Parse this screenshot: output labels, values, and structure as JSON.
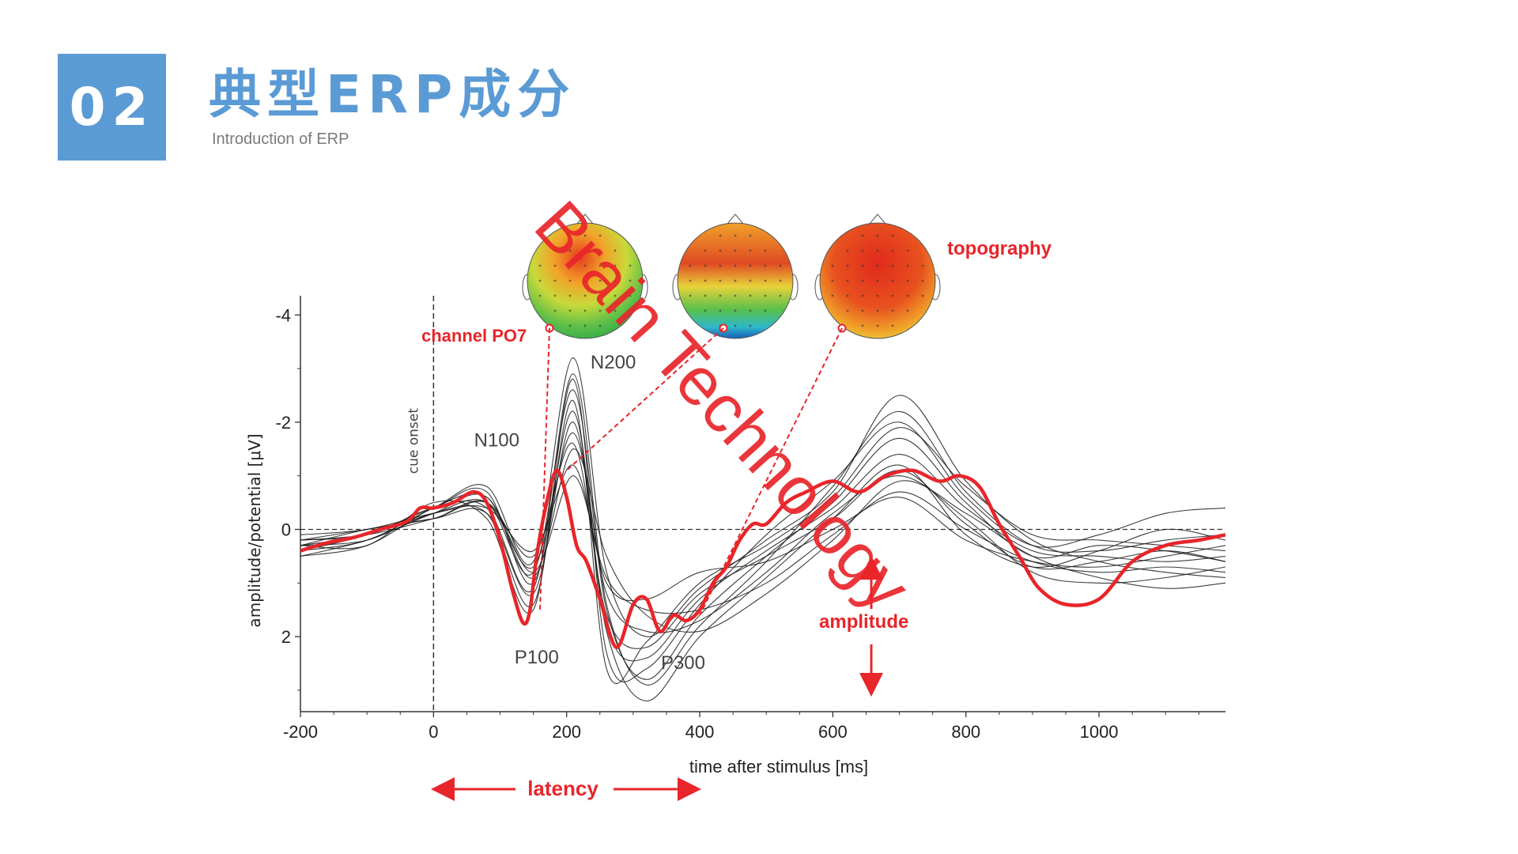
{
  "header": {
    "section_number": "02",
    "title": "典型ERP成分",
    "subtitle": "Introduction of ERP"
  },
  "watermark": "Brain Technology",
  "chart_data": {
    "type": "line",
    "xlabel": "time after stimulus [ms]",
    "ylabel": "amplitude/potential [μV]",
    "xlim": [
      -200,
      1190
    ],
    "ylim": [
      -4.3,
      3.4
    ],
    "y_axis_inverted": true,
    "x_ticks": [
      "-200",
      "0",
      "200",
      "400",
      "600",
      "800",
      "1000"
    ],
    "x_tick_values": [
      -200,
      0,
      200,
      400,
      600,
      800,
      1000
    ],
    "y_ticks": [
      "-4",
      "-2",
      "0",
      "2"
    ],
    "y_tick_values": [
      -4,
      -2,
      0,
      2
    ],
    "cue_onset_label": "cue onset",
    "cue_onset_time": 0,
    "component_labels": [
      {
        "text": "N100",
        "x": 95,
        "y": -1.55
      },
      {
        "text": "N200",
        "x": 270,
        "y": -3.0
      },
      {
        "text": "P100",
        "x": 155,
        "y": 2.5
      },
      {
        "text": "P300",
        "x": 375,
        "y": 2.6
      }
    ],
    "highlight_color": "#e8252a",
    "trace_color": "#1a1a1a",
    "highlighted_series": {
      "name": "channel PO7",
      "x": [
        -200,
        -160,
        -120,
        -80,
        -40,
        -20,
        0,
        30,
        60,
        80,
        100,
        120,
        135,
        145,
        155,
        170,
        185,
        200,
        215,
        230,
        250,
        275,
        300,
        320,
        340,
        360,
        380,
        400,
        420,
        440,
        460,
        480,
        500,
        530,
        560,
        600,
        640,
        680,
        720,
        760,
        790,
        820,
        850,
        880,
        910,
        950,
        1000,
        1050,
        1100,
        1150,
        1190
      ],
      "y": [
        0.4,
        0.25,
        0.15,
        0.0,
        -0.15,
        -0.4,
        -0.4,
        -0.5,
        -0.7,
        -0.5,
        0.2,
        1.2,
        1.75,
        1.5,
        0.5,
        -0.5,
        -1.1,
        -0.6,
        0.3,
        0.6,
        1.3,
        2.2,
        1.4,
        1.3,
        1.9,
        1.6,
        1.7,
        1.5,
        1.0,
        0.7,
        0.2,
        -0.1,
        -0.1,
        -0.5,
        -0.7,
        -0.9,
        -0.7,
        -1.0,
        -1.1,
        -0.9,
        -1.0,
        -0.8,
        -0.1,
        0.5,
        1.1,
        1.4,
        1.3,
        0.6,
        0.3,
        0.2,
        0.1
      ]
    },
    "background_traces": [
      {
        "x": [
          -200,
          -100,
          0,
          80,
          150,
          210,
          260,
          320,
          400,
          500,
          600,
          700,
          800,
          900,
          1000,
          1100,
          1190
        ],
        "y": [
          0.3,
          0.1,
          -0.3,
          -0.5,
          0.8,
          -2.6,
          1.5,
          2.8,
          1.6,
          0.5,
          -0.5,
          -1.7,
          -0.5,
          0.5,
          0.3,
          0.4,
          0.6
        ]
      },
      {
        "x": [
          -200,
          -100,
          0,
          80,
          150,
          210,
          260,
          320,
          400,
          500,
          600,
          700,
          800,
          900,
          1000,
          1100,
          1190
        ],
        "y": [
          0.4,
          0.2,
          -0.4,
          -0.8,
          0.6,
          -3.2,
          0.8,
          2.0,
          1.1,
          0.2,
          -0.7,
          -2.5,
          -0.9,
          0.2,
          0.6,
          0.8,
          0.9
        ]
      },
      {
        "x": [
          -200,
          -100,
          0,
          80,
          150,
          210,
          260,
          320,
          400,
          500,
          600,
          700,
          800,
          900,
          1000,
          1100,
          1190
        ],
        "y": [
          0.2,
          0.0,
          -0.2,
          -0.3,
          1.2,
          -2.0,
          1.9,
          3.2,
          2.0,
          0.9,
          -0.2,
          -1.2,
          0.1,
          0.7,
          0.4,
          0.0,
          0.2
        ]
      },
      {
        "x": [
          -200,
          -100,
          0,
          80,
          150,
          210,
          260,
          320,
          400,
          500,
          600,
          700,
          800,
          900,
          1000,
          1100,
          1190
        ],
        "y": [
          0.5,
          0.2,
          -0.3,
          -0.6,
          0.9,
          -1.5,
          0.5,
          1.6,
          1.9,
          1.2,
          0.2,
          -0.9,
          -0.3,
          0.5,
          0.9,
          1.1,
          1.0
        ]
      },
      {
        "x": [
          -200,
          -100,
          0,
          80,
          150,
          210,
          260,
          320,
          400,
          500,
          600,
          700,
          800,
          900,
          1000,
          1100,
          1190
        ],
        "y": [
          0.3,
          0.3,
          -0.5,
          -0.2,
          1.5,
          -2.8,
          2.3,
          2.6,
          1.4,
          0.1,
          -0.9,
          -2.0,
          -0.6,
          0.3,
          0.1,
          -0.3,
          -0.4
        ]
      },
      {
        "x": [
          -200,
          -100,
          0,
          80,
          150,
          210,
          260,
          320,
          400,
          500,
          600,
          700,
          800,
          900,
          1000,
          1100,
          1190
        ],
        "y": [
          0.1,
          0.0,
          -0.3,
          -0.4,
          0.4,
          -1.2,
          1.0,
          1.3,
          0.8,
          0.6,
          0.0,
          -0.6,
          0.2,
          0.6,
          0.7,
          0.5,
          0.3
        ]
      },
      {
        "x": [
          -200,
          -100,
          0,
          80,
          150,
          210,
          260,
          320,
          400,
          500,
          600,
          700,
          800,
          900,
          1000,
          1100,
          1190
        ],
        "y": [
          0.4,
          0.1,
          -0.4,
          -0.7,
          1.0,
          -2.2,
          1.8,
          2.4,
          1.3,
          0.4,
          -0.4,
          -1.4,
          -0.4,
          0.4,
          0.5,
          0.6,
          0.5
        ]
      },
      {
        "x": [
          -200,
          -100,
          0,
          80,
          150,
          210,
          260,
          320,
          400,
          500,
          600,
          700,
          800,
          900,
          1000,
          1100,
          1190
        ],
        "y": [
          0.2,
          0.1,
          -0.2,
          -0.5,
          0.7,
          -1.8,
          1.2,
          1.9,
          1.7,
          0.8,
          -0.3,
          -1.0,
          -0.2,
          0.8,
          1.0,
          0.9,
          0.7
        ]
      },
      {
        "x": [
          -200,
          -100,
          0,
          80,
          150,
          210,
          260,
          320,
          400,
          500,
          600,
          700,
          800,
          900,
          1000,
          1100,
          1190
        ],
        "y": [
          0.3,
          0.2,
          -0.3,
          -0.3,
          1.4,
          -2.4,
          2.6,
          2.1,
          1.0,
          0.3,
          -0.6,
          -1.9,
          -0.8,
          0.1,
          0.2,
          0.3,
          0.4
        ]
      },
      {
        "x": [
          -200,
          -100,
          0,
          80,
          150,
          210,
          260,
          320,
          400,
          500,
          600,
          700,
          800,
          900,
          1000,
          1100,
          1190
        ],
        "y": [
          0.5,
          0.3,
          -0.4,
          -0.6,
          0.8,
          -1.0,
          0.9,
          1.5,
          1.5,
          1.0,
          0.1,
          -0.7,
          0.0,
          0.6,
          0.8,
          0.7,
          0.8
        ]
      },
      {
        "x": [
          -200,
          -100,
          0,
          80,
          150,
          210,
          260,
          320,
          400,
          500,
          600,
          700,
          800,
          900,
          1000,
          1100,
          1190
        ],
        "y": [
          0.2,
          0.1,
          -0.4,
          -0.4,
          1.1,
          -2.9,
          1.4,
          2.9,
          1.8,
          0.6,
          -0.8,
          -2.2,
          -0.7,
          0.3,
          0.4,
          0.2,
          0.1
        ]
      },
      {
        "x": [
          -200,
          -100,
          0,
          80,
          150,
          210,
          260,
          320,
          400,
          500,
          600,
          700,
          800,
          900,
          1000,
          1100,
          1190
        ],
        "y": [
          0.3,
          0.0,
          -0.2,
          -0.5,
          0.5,
          -1.6,
          1.6,
          2.2,
          1.2,
          0.5,
          -0.2,
          -1.1,
          -0.1,
          0.7,
          0.6,
          0.4,
          0.6
        ]
      }
    ],
    "topography_maps": [
      {
        "anchor_x": 160,
        "anchor_y": 1.5
      },
      {
        "anchor_x": 200,
        "anchor_y": -1.1
      },
      {
        "anchor_x": 400,
        "anchor_y": 1.6
      }
    ],
    "annotations": {
      "channel_label": "channel PO7",
      "topography_label": "topography",
      "amplitude_label": "amplitude",
      "latency_label": "latency"
    }
  }
}
